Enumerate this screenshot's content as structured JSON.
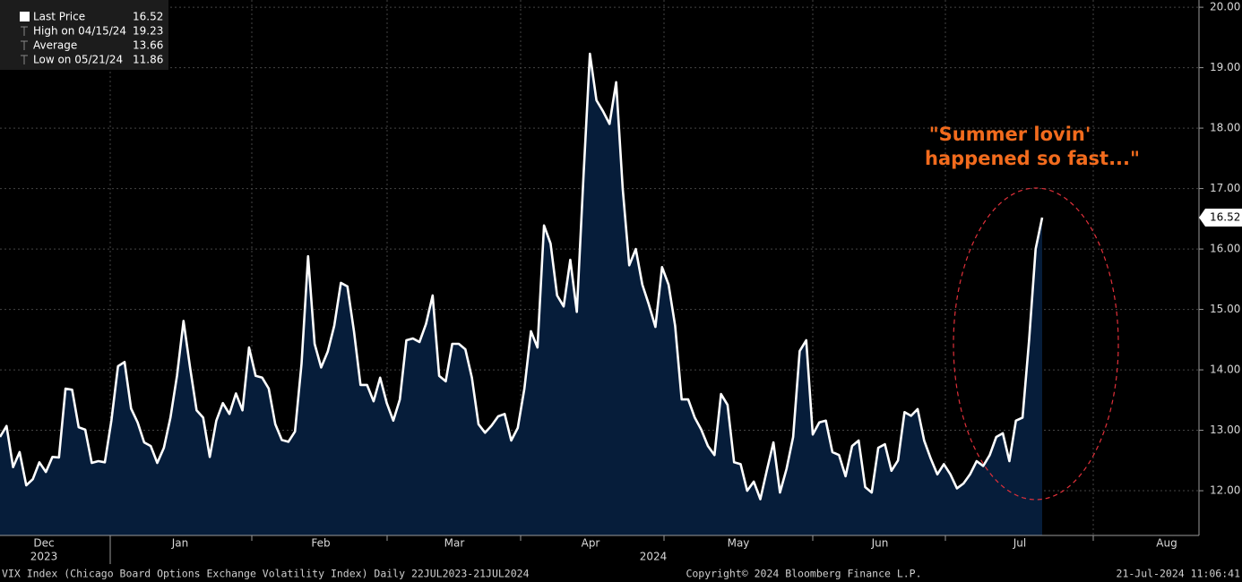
{
  "chart_data": {
    "type": "area",
    "series": [
      {
        "name": "Last Price",
        "color": "#ffffff",
        "fill": "#061d3a",
        "values": [
          12.89,
          13.07,
          12.39,
          12.64,
          12.09,
          12.19,
          12.47,
          12.31,
          12.56,
          12.55,
          13.69,
          13.67,
          13.05,
          13.01,
          12.46,
          12.49,
          12.47,
          13.16,
          14.06,
          14.13,
          13.36,
          13.13,
          12.8,
          12.74,
          12.46,
          12.71,
          13.21,
          13.9,
          14.81,
          14.04,
          13.33,
          13.21,
          12.56,
          13.16,
          13.45,
          13.27,
          13.61,
          13.33,
          14.37,
          13.9,
          13.87,
          13.69,
          13.1,
          12.84,
          12.81,
          12.98,
          14.1,
          15.88,
          14.43,
          14.04,
          14.3,
          14.73,
          15.44,
          15.38,
          14.64,
          13.75,
          13.75,
          13.48,
          13.87,
          13.45,
          13.16,
          13.51,
          14.49,
          14.52,
          14.46,
          14.76,
          15.23,
          13.9,
          13.81,
          14.43,
          14.43,
          14.34,
          13.87,
          13.1,
          12.96,
          13.08,
          13.23,
          13.27,
          12.83,
          13.04,
          13.69,
          14.64,
          14.37,
          16.39,
          16.09,
          15.23,
          15.05,
          15.82,
          14.96,
          17.16,
          19.23,
          18.46,
          18.28,
          18.07,
          18.76,
          17.0,
          15.73,
          16.0,
          15.41,
          15.08,
          14.71,
          15.7,
          15.41,
          14.73,
          13.51,
          13.51,
          13.21,
          13.01,
          12.74,
          12.59,
          13.6,
          13.42,
          12.47,
          12.44,
          12.0,
          12.15,
          11.86,
          12.34,
          12.8,
          11.97,
          12.36,
          12.89,
          14.31,
          14.49,
          12.93,
          13.13,
          13.16,
          12.64,
          12.59,
          12.24,
          12.74,
          12.83,
          12.06,
          11.97,
          12.71,
          12.77,
          12.33,
          12.5,
          13.3,
          13.24,
          13.35,
          12.83,
          12.53,
          12.27,
          12.44,
          12.27,
          12.04,
          12.12,
          12.27,
          12.49,
          12.41,
          12.59,
          12.89,
          12.95,
          12.49,
          13.16,
          13.21,
          14.49,
          16.0,
          16.52
        ]
      }
    ],
    "stats": [
      {
        "label": "High on 04/15/24",
        "value": 19.23
      },
      {
        "label": "Average",
        "value": 13.66
      },
      {
        "label": "Low on 05/21/24",
        "value": 11.86
      }
    ],
    "ylim": [
      11.26,
      20.12
    ],
    "yticks": [
      {
        "value": 12,
        "label": "12.00"
      },
      {
        "value": 13,
        "label": "13.00"
      },
      {
        "value": 14,
        "label": "14.00"
      },
      {
        "value": 15,
        "label": "15.00"
      },
      {
        "value": 16,
        "label": "16.00"
      },
      {
        "value": 17,
        "label": "17.00"
      },
      {
        "value": 18,
        "label": "18.00"
      },
      {
        "value": 19,
        "label": "19.00"
      },
      {
        "value": 20,
        "label": "20.00"
      }
    ],
    "x_labels": [
      "Dec",
      "Jan",
      "Feb",
      "Mar",
      "Apr",
      "May",
      "Jun",
      "Jul",
      "Aug"
    ],
    "year_labels": [
      "2023",
      "2024"
    ],
    "grid": true,
    "annotation": [
      "\"Summer lovin'",
      "happened so fast...\""
    ],
    "footer": {
      "left": "VIX Index (Chicago Board Options Exchange Volatility Index)  Daily 22JUL2023-21JUL2024",
      "center": "Copyright© 2024 Bloomberg Finance L.P.",
      "right": "21-Jul-2024 11:06:41"
    }
  }
}
